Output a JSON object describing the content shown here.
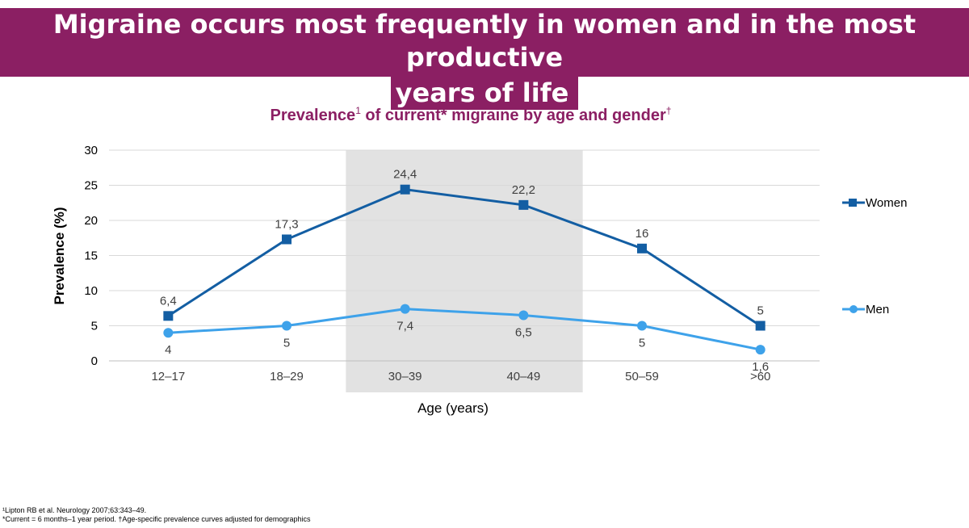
{
  "headline": {
    "line1": "Migraine occurs most frequently in women and in the most productive",
    "line2": "years of life"
  },
  "chart_title": {
    "prefix": "Prevalence",
    "sup1": "1",
    "middle": " of current* migraine by age and gender",
    "sup2": "†"
  },
  "footnotes": {
    "line1": "¹Lipton RB et al. Neurology 2007;63:343–49.",
    "line2": "*Current = 6 months–1 year period. †Age-specific prevalence curves adjusted for demographics"
  },
  "colors": {
    "headline_bg": "#8b1f63",
    "women": "#135ea3",
    "men": "#3ea2ea",
    "highlight": "#e2e2e2",
    "grid": "#d9d9d9"
  },
  "chart_data": {
    "type": "line",
    "title": "Prevalence of current* migraine by age and gender",
    "xlabel": "Age (years)",
    "ylabel": "Prevalence (%)",
    "categories": [
      "12–17",
      "18–29",
      "30–39",
      "40–49",
      "50–59",
      ">60"
    ],
    "ylim": [
      0,
      30
    ],
    "yticks": [
      0,
      5,
      10,
      15,
      20,
      25,
      30
    ],
    "grid": true,
    "legend_position": "right",
    "highlighted_categories": [
      "30–39",
      "40–49"
    ],
    "series": [
      {
        "name": "Women",
        "marker": "square",
        "values": [
          6.4,
          17.3,
          24.4,
          22.2,
          16,
          5
        ],
        "labels": [
          "6,4",
          "17,3",
          "24,4",
          "22,2",
          "16",
          "5"
        ]
      },
      {
        "name": "Men",
        "marker": "circle",
        "values": [
          4,
          5,
          7.4,
          6.5,
          5,
          1.6
        ],
        "labels": [
          "4",
          "5",
          "7,4",
          "6,5",
          "5",
          "1,6"
        ]
      }
    ]
  }
}
